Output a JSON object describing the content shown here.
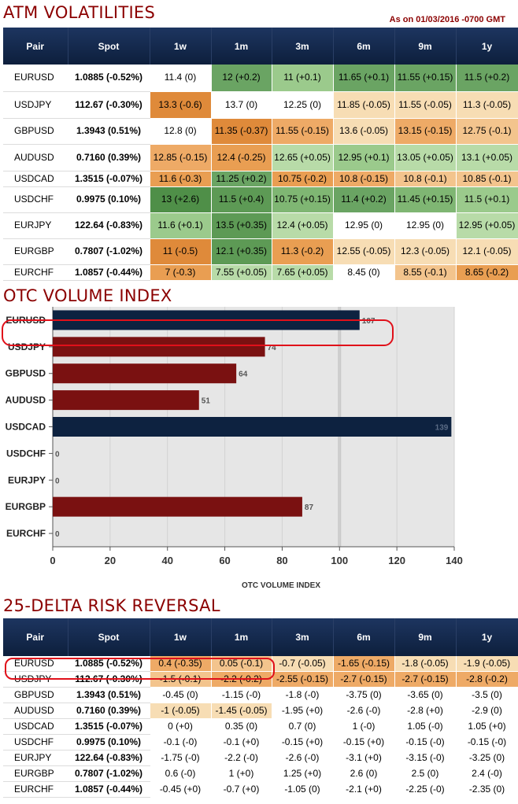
{
  "atm": {
    "title": "ATM VOLATILITIES",
    "as_of": "As on 01/03/2016 -0700 GMT",
    "headers": [
      "Pair",
      "Spot",
      "1w",
      "1m",
      "3m",
      "6m",
      "9m",
      "1y"
    ],
    "rows": [
      {
        "pair": "EURUSD",
        "spot": "1.0885 (-0.52%)",
        "cells": [
          "11.4 (0)",
          "12 (+0.2)",
          "11 (+0.1)",
          "11.65 (+0.1)",
          "11.55 (+0.15)",
          "11.5 (+0.2)"
        ],
        "colors": [
          "#ffffff",
          "#6aa463",
          "#9bca8c",
          "#6aa463",
          "#6aa463",
          "#6aa463"
        ]
      },
      {
        "pair": "USDJPY",
        "spot": "112.67 (-0.30%)",
        "cells": [
          "13.3 (-0.6)",
          "13.7 (0)",
          "12.25 (0)",
          "11.85 (-0.05)",
          "11.55 (-0.05)",
          "11.3 (-0.05)"
        ],
        "colors": [
          "#df8a3a",
          "#ffffff",
          "#ffffff",
          "#f7ddb4",
          "#f7ddb4",
          "#f7ddb4"
        ]
      },
      {
        "pair": "GBPUSD",
        "spot": "1.3943 (0.51%)",
        "cells": [
          "12.8 (0)",
          "11.35 (-0.37)",
          "11.55 (-0.15)",
          "13.6 (-0.05)",
          "13.15 (-0.15)",
          "12.75 (-0.1)"
        ],
        "colors": [
          "#ffffff",
          "#df8a3a",
          "#eeaa66",
          "#f7ddb4",
          "#eeaa66",
          "#f3c48d"
        ]
      },
      {
        "pair": "AUDUSD",
        "spot": "0.7160 (0.39%)",
        "cells": [
          "12.85 (-0.15)",
          "12.4 (-0.25)",
          "12.65 (+0.05)",
          "12.95 (+0.1)",
          "13.05 (+0.05)",
          "13.1 (+0.05)"
        ],
        "colors": [
          "#eeaa66",
          "#e99e52",
          "#b8dba8",
          "#9bca8c",
          "#b8dba8",
          "#b8dba8"
        ]
      },
      {
        "pair": "USDCAD",
        "spot": "1.3515 (-0.07%)",
        "cells": [
          "11.6 (-0.3)",
          "11.25 (+0.2)",
          "10.75 (-0.2)",
          "10.8 (-0.15)",
          "10.8 (-0.1)",
          "10.85 (-0.1)"
        ],
        "colors": [
          "#e99e52",
          "#6aa463",
          "#e99e52",
          "#eeaa66",
          "#f3c48d",
          "#f3c48d"
        ]
      },
      {
        "pair": "USDCHF",
        "spot": "0.9975 (0.10%)",
        "cells": [
          "13 (+2.6)",
          "11.5 (+0.4)",
          "10.75 (+0.15)",
          "11.4 (+0.2)",
          "11.45 (+0.15)",
          "11.5 (+0.1)"
        ],
        "colors": [
          "#4f8f48",
          "#5d9a55",
          "#7fb673",
          "#6aa463",
          "#7fb673",
          "#9bca8c"
        ]
      },
      {
        "pair": "EURJPY",
        "spot": "122.64 (-0.83%)",
        "cells": [
          "11.6 (+0.1)",
          "13.5 (+0.35)",
          "12.4 (+0.05)",
          "12.95 (0)",
          "12.95 (0)",
          "12.95 (+0.05)"
        ],
        "colors": [
          "#9bca8c",
          "#5d9a55",
          "#b8dba8",
          "#ffffff",
          "#ffffff",
          "#b8dba8"
        ]
      },
      {
        "pair": "EURGBP",
        "spot": "0.7807 (-1.02%)",
        "cells": [
          "11 (-0.5)",
          "12.1 (+0.35)",
          "11.3 (-0.2)",
          "12.55 (-0.05)",
          "12.3 (-0.05)",
          "12.1 (-0.05)"
        ],
        "colors": [
          "#df8a3a",
          "#5d9a55",
          "#e99e52",
          "#f7ddb4",
          "#f7ddb4",
          "#f7ddb4"
        ]
      },
      {
        "pair": "EURCHF",
        "spot": "1.0857 (-0.44%)",
        "cells": [
          "7 (-0.3)",
          "7.55 (+0.05)",
          "7.65 (+0.05)",
          "8.45 (0)",
          "8.55 (-0.1)",
          "8.65 (-0.2)"
        ],
        "colors": [
          "#e99e52",
          "#b8dba8",
          "#b8dba8",
          "#ffffff",
          "#f3c48d",
          "#e99e52"
        ]
      }
    ]
  },
  "otc": {
    "title": "OTC VOLUME INDEX",
    "bar_colors": {
      "highlight": "#0d2240",
      "normal": "#7a1111",
      "accent": "#e0101a"
    }
  },
  "chart_data": {
    "type": "bar",
    "orientation": "horizontal",
    "categories": [
      "EURUSD",
      "USDJPY",
      "GBPUSD",
      "AUDUSD",
      "USDCAD",
      "USDCHF",
      "EURJPY",
      "EURGBP",
      "EURCHF"
    ],
    "values": [
      107,
      74,
      64,
      51,
      139,
      0,
      0,
      87,
      0
    ],
    "xlabel": "OTC VOLUME INDEX",
    "ylabel": "",
    "xlim": [
      0,
      140
    ],
    "xticks": [
      0,
      20,
      40,
      60,
      80,
      100,
      120,
      140
    ],
    "grid": true
  },
  "rr": {
    "title": "25-DELTA RISK REVERSAL",
    "headers": [
      "Pair",
      "Spot",
      "1w",
      "1m",
      "3m",
      "6m",
      "9m",
      "1y"
    ],
    "rows": [
      {
        "pair": "EURUSD",
        "spot": "1.0885 (-0.52%)",
        "cells": [
          "0.4 (-0.35)",
          "0.05 (-0.1)",
          "-0.7 (-0.05)",
          "-1.65 (-0.15)",
          "-1.8 (-0.05)",
          "-1.9 (-0.05)"
        ],
        "colors": [
          "#eeaa66",
          "#f3c48d",
          "#f7ddb4",
          "#eeaa66",
          "#f7ddb4",
          "#f7ddb4"
        ]
      },
      {
        "pair": "USDJPY",
        "spot": "112.67 (-0.30%)",
        "cells": [
          "-1.5 (-0.1)",
          "-2.2 (-0.2)",
          "-2.55 (-0.15)",
          "-2.7 (-0.15)",
          "-2.7 (-0.15)",
          "-2.8 (-0.2)"
        ],
        "colors": [
          "#f3c48d",
          "#eeaa66",
          "#eeaa66",
          "#eeaa66",
          "#eeaa66",
          "#eeaa66"
        ]
      },
      {
        "pair": "GBPUSD",
        "spot": "1.3943 (0.51%)",
        "cells": [
          "-0.45 (0)",
          "-1.15 (-0)",
          "-1.8 (-0)",
          "-3.75 (0)",
          "-3.65 (0)",
          "-3.5 (0)"
        ],
        "colors": [
          "#ffffff",
          "#ffffff",
          "#ffffff",
          "#ffffff",
          "#ffffff",
          "#ffffff"
        ]
      },
      {
        "pair": "AUDUSD",
        "spot": "0.7160 (0.39%)",
        "cells": [
          "-1 (-0.05)",
          "-1.45 (-0.05)",
          "-1.95 (+0)",
          "-2.6 (-0)",
          "-2.8 (+0)",
          "-2.9 (0)"
        ],
        "colors": [
          "#f7ddb4",
          "#f7ddb4",
          "#ffffff",
          "#ffffff",
          "#ffffff",
          "#ffffff"
        ]
      },
      {
        "pair": "USDCAD",
        "spot": "1.3515 (-0.07%)",
        "cells": [
          "0 (+0)",
          "0.35 (0)",
          "0.7 (0)",
          "1 (-0)",
          "1.05 (-0)",
          "1.05 (+0)"
        ],
        "colors": [
          "#ffffff",
          "#ffffff",
          "#ffffff",
          "#ffffff",
          "#ffffff",
          "#ffffff"
        ]
      },
      {
        "pair": "USDCHF",
        "spot": "0.9975 (0.10%)",
        "cells": [
          "-0.1 (-0)",
          "-0.1 (+0)",
          "-0.15 (+0)",
          "-0.15 (+0)",
          "-0.15 (-0)",
          "-0.15 (-0)"
        ],
        "colors": [
          "#ffffff",
          "#ffffff",
          "#ffffff",
          "#ffffff",
          "#ffffff",
          "#ffffff"
        ]
      },
      {
        "pair": "EURJPY",
        "spot": "122.64 (-0.83%)",
        "cells": [
          "-1.75 (-0)",
          "-2.2 (-0)",
          "-2.6 (-0)",
          "-3.1 (+0)",
          "-3.15 (-0)",
          "-3.25 (0)"
        ],
        "colors": [
          "#ffffff",
          "#ffffff",
          "#ffffff",
          "#ffffff",
          "#ffffff",
          "#ffffff"
        ]
      },
      {
        "pair": "EURGBP",
        "spot": "0.7807 (-1.02%)",
        "cells": [
          "0.6 (-0)",
          "1 (+0)",
          "1.25 (+0)",
          "2.6 (0)",
          "2.5 (0)",
          "2.4 (-0)"
        ],
        "colors": [
          "#ffffff",
          "#ffffff",
          "#ffffff",
          "#ffffff",
          "#ffffff",
          "#ffffff"
        ]
      },
      {
        "pair": "EURCHF",
        "spot": "1.0857 (-0.44%)",
        "cells": [
          "-0.45 (+0)",
          "-0.7 (+0)",
          "-1.05 (0)",
          "-2.1 (+0)",
          "-2.25 (-0)",
          "-2.35 (0)"
        ],
        "colors": [
          "#ffffff",
          "#ffffff",
          "#ffffff",
          "#ffffff",
          "#ffffff",
          "#ffffff"
        ]
      }
    ]
  }
}
